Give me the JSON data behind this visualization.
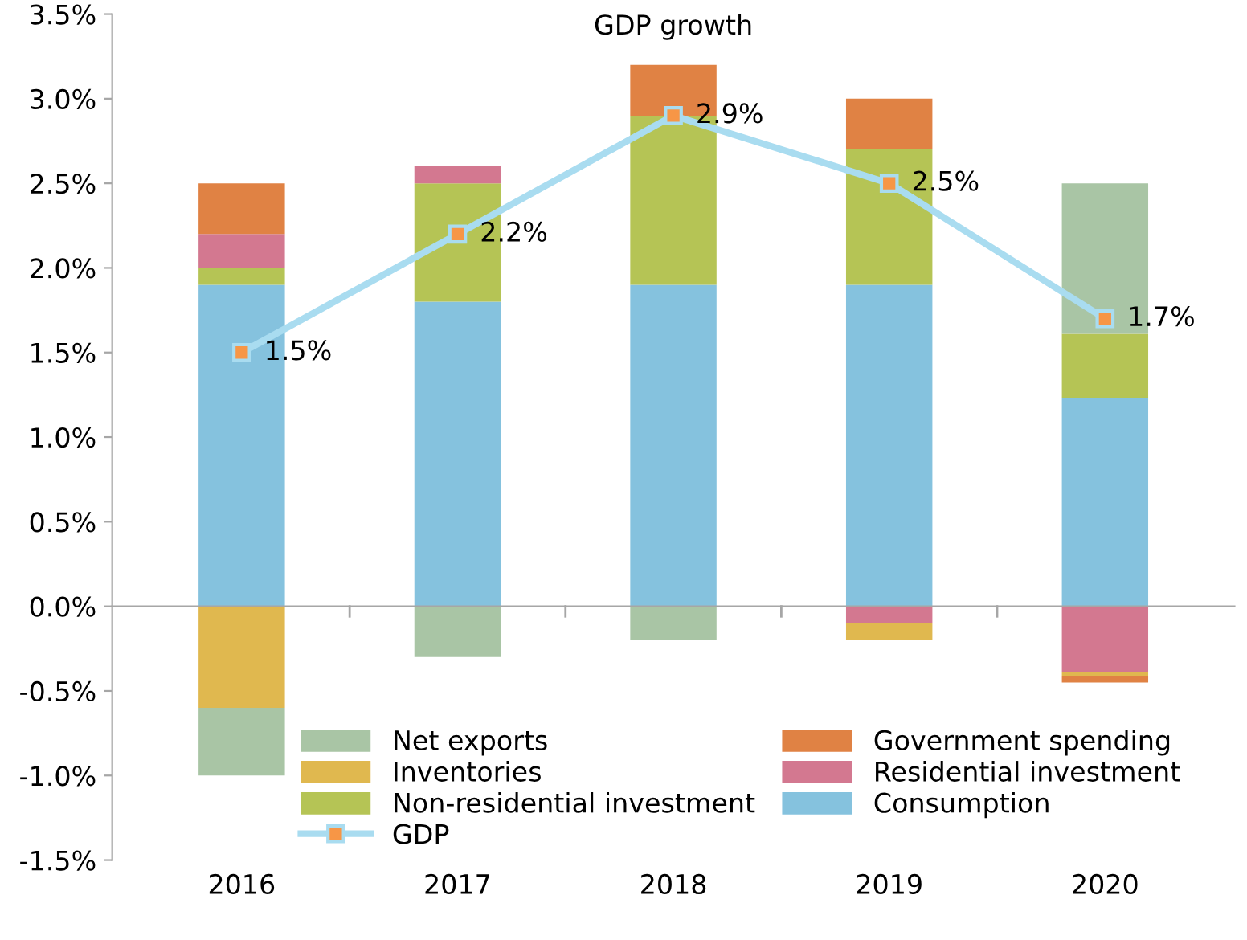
{
  "chart_data": {
    "type": "bar",
    "title": "GDP growth",
    "stacked": true,
    "categories": [
      "2016",
      "2017",
      "2018",
      "2019",
      "2020"
    ],
    "series": [
      {
        "name": "Consumption",
        "color": "#85c2de",
        "values": [
          1.9,
          1.8,
          1.9,
          1.9,
          1.23
        ]
      },
      {
        "name": "Non-residential investment",
        "color": "#b5c455",
        "values": [
          0.1,
          0.7,
          1.0,
          0.8,
          0.38
        ]
      },
      {
        "name": "Residential investment",
        "color": "#d37890",
        "values": [
          0.2,
          0.1,
          0.0,
          -0.1,
          -0.39
        ]
      },
      {
        "name": "Inventories",
        "color": "#e0b84f",
        "values": [
          -0.6,
          0.0,
          0.0,
          -0.1,
          -0.02
        ]
      },
      {
        "name": "Government spending",
        "color": "#e08244",
        "values": [
          0.3,
          0.0,
          0.3,
          0.3,
          -0.04
        ]
      },
      {
        "name": "Net exports",
        "color": "#a9c5a5",
        "values": [
          -0.4,
          -0.3,
          -0.2,
          0.0,
          0.89
        ]
      },
      {
        "name": "GDP",
        "type": "line",
        "color": "#a9dcf0",
        "marker": "square",
        "values": [
          1.5,
          2.2,
          2.9,
          2.5,
          1.7
        ],
        "value_labels": [
          "1.5%",
          "2.2%",
          "2.9%",
          "2.5%",
          "1.7%"
        ]
      }
    ],
    "ylim": [
      -1.5,
      3.5
    ],
    "yticks": [
      {
        "value": -1.5,
        "label": "-1.5%"
      },
      {
        "value": -1.0,
        "label": "-1.0%"
      },
      {
        "value": -0.5,
        "label": "-0.5%"
      },
      {
        "value": 0.0,
        "label": "0.0%"
      },
      {
        "value": 0.5,
        "label": "0.5%"
      },
      {
        "value": 1.0,
        "label": "1.0%"
      },
      {
        "value": 1.5,
        "label": "1.5%"
      },
      {
        "value": 2.0,
        "label": "2.0%"
      },
      {
        "value": 2.5,
        "label": "2.5%"
      },
      {
        "value": 3.0,
        "label": "3.0%"
      },
      {
        "value": 3.5,
        "label": "3.5%"
      }
    ],
    "legend": "bottom"
  }
}
